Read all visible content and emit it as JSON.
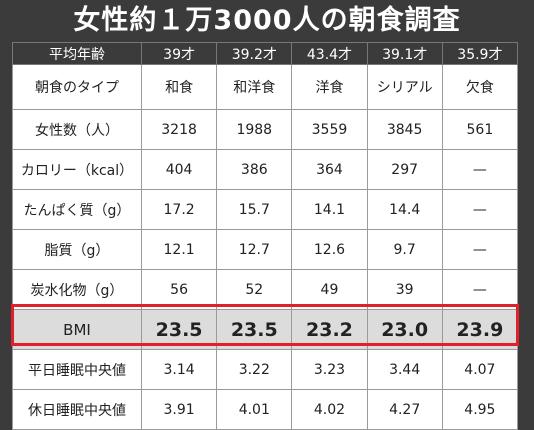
{
  "title": "女性約１万3000人の朝食調査",
  "table": {
    "header": [
      "平均年齢",
      "39才",
      "39.2才",
      "43.4才",
      "39.1才",
      "35.9才"
    ],
    "rows": [
      [
        "朝食のタイプ",
        "和食",
        "和洋食",
        "洋食",
        "シリアル",
        "欠食"
      ],
      [
        "女性数（人）",
        "3218",
        "1988",
        "3559",
        "3845",
        "561"
      ],
      [
        "カロリー（kcal）",
        "404",
        "386",
        "364",
        "297",
        "—"
      ],
      [
        "たんぱく質（g）",
        "17.2",
        "15.7",
        "14.1",
        "14.4",
        "—"
      ],
      [
        "脂質（g）",
        "12.1",
        "12.7",
        "12.6",
        "9.7",
        "—"
      ],
      [
        "炭水化物（g）",
        "56",
        "52",
        "49",
        "39",
        "—"
      ],
      [
        "BMI",
        "23.5",
        "23.5",
        "23.2",
        "23.0",
        "23.9"
      ],
      [
        "平日睡眠中央値",
        "3.14",
        "3.22",
        "3.23",
        "3.44",
        "4.07"
      ],
      [
        "休日睡眠中央値",
        "3.91",
        "4.01",
        "4.02",
        "4.27",
        "4.95"
      ]
    ]
  }
}
